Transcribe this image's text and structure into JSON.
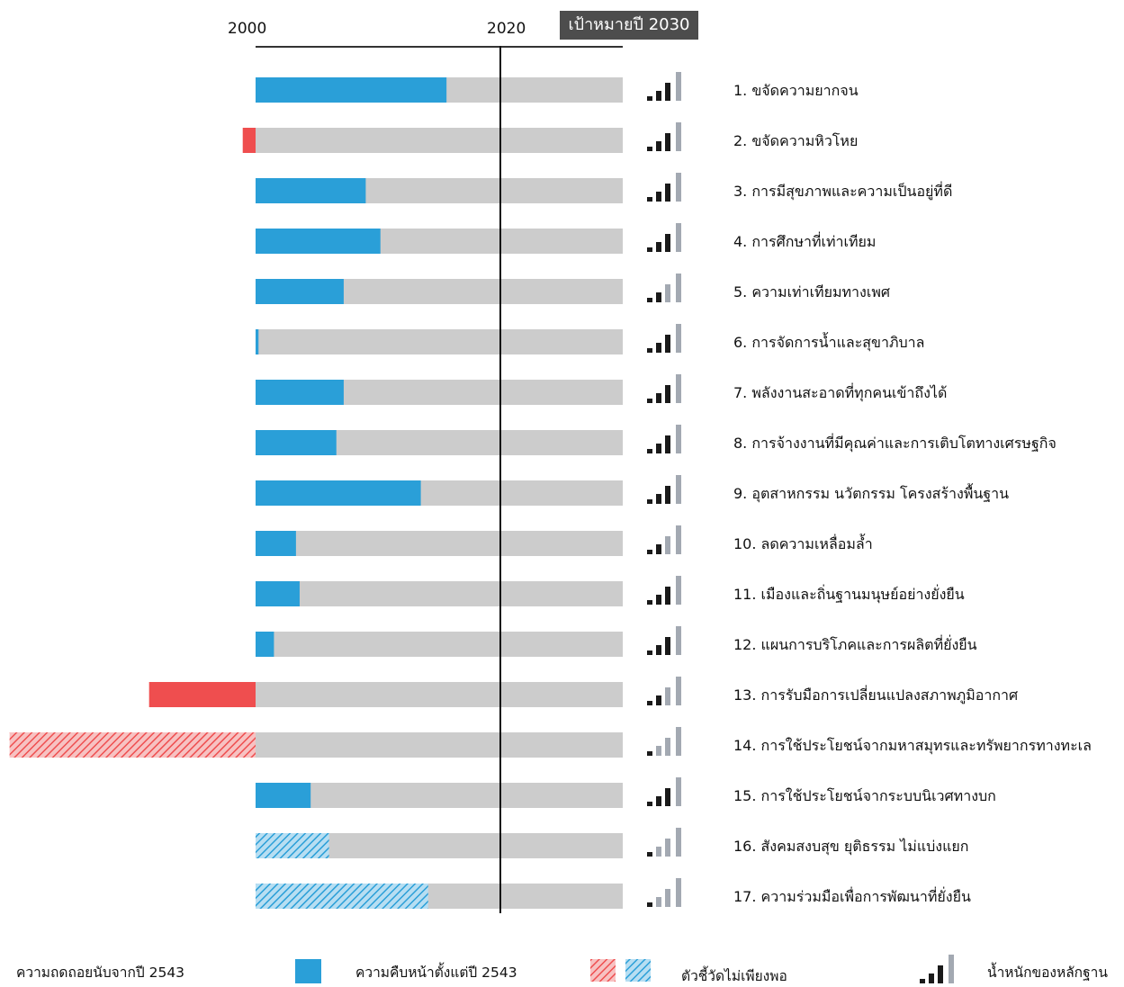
{
  "chart_data": {
    "type": "bar",
    "axis": {
      "start_label": "2000",
      "mid_label": "2020",
      "target_label": "เป้าหมายปี 2030"
    },
    "scale_note": "values are fraction of progress toward 2030 target (positive = progress, negative = regression)",
    "goals": [
      {
        "label": "1. ขจัดความยากจน",
        "value": 0.52,
        "type": "progress",
        "evidence": 2
      },
      {
        "label": "2. ขจัดความหิวโหย",
        "value": -0.035,
        "type": "regression",
        "evidence": 3
      },
      {
        "label": "3. การมีสุขภาพและความเป็นอยู่ที่ดี",
        "value": 0.3,
        "type": "progress",
        "evidence": 3
      },
      {
        "label": "4. การศึกษาที่เท่าเทียม",
        "value": 0.34,
        "type": "progress",
        "evidence": 3
      },
      {
        "label": "5. ความเท่าเทียมทางเพศ",
        "value": 0.24,
        "type": "progress",
        "evidence": 1
      },
      {
        "label": "6. การจัดการน้ำและสุขาภิบาล",
        "value": 0.008,
        "type": "progress",
        "evidence": 2
      },
      {
        "label": "7. พลังงานสะอาดที่ทุกคนเข้าถึงได้",
        "value": 0.24,
        "type": "progress",
        "evidence": 3
      },
      {
        "label": "8. การจ้างงานที่มีคุณค่าและการเติบโตทางเศรษฐกิจ",
        "value": 0.22,
        "type": "progress",
        "evidence": 2
      },
      {
        "label": "9. อุตสาหกรรม นวัตกรรม โครงสร้างพื้นฐาน",
        "value": 0.45,
        "type": "progress",
        "evidence": 3
      },
      {
        "label": "10. ลดความเหลื่อมล้ำ",
        "value": 0.11,
        "type": "progress",
        "evidence": 1
      },
      {
        "label": "11. เมืองและถิ่นฐานมนุษย์อย่างยั่งยืน",
        "value": 0.12,
        "type": "progress",
        "evidence": 2
      },
      {
        "label": "12. แผนการบริโภคและการผลิตที่ยั่งยืน",
        "value": 0.05,
        "type": "progress",
        "evidence": 2
      },
      {
        "label": "13. การรับมือการเปลี่ยนแปลงสภาพภูมิอากาศ",
        "value": -0.29,
        "type": "regression",
        "evidence": 1
      },
      {
        "label": "14. การใช้ประโยชน์จากมหาสมุทรและทรัพยากรทางทะเล",
        "value": -0.67,
        "type": "regression-insufficient",
        "evidence": 0
      },
      {
        "label": "15. การใช้ประโยชน์จากระบบนิเวศทางบก",
        "value": 0.15,
        "type": "progress",
        "evidence": 2
      },
      {
        "label": "16. สังคมสงบสุข ยุติธรรม ไม่แบ่งแยก",
        "value": 0.2,
        "type": "progress-insufficient",
        "evidence": 0
      },
      {
        "label": "17. ความร่วมมือเพื่อการพัฒนาที่ยั่งยืน",
        "value": 0.47,
        "type": "progress-insufficient",
        "evidence": 0
      }
    ],
    "legend": {
      "regression": "ความถดถอยนับจากปี 2543",
      "progress": "ความคืบหน้าตั้งแต่ปี 2543",
      "insufficient": "ตัวชี้วัดไม่เพียงพอ",
      "evidence": "น้ำหนักของหลักฐาน"
    },
    "colors": {
      "progress": "#2a9fd8",
      "regression": "#ef4e4f",
      "track": "#cccccc",
      "evidence_dark": "#1a1a1a",
      "evidence_light": "#a3a9b2"
    }
  }
}
